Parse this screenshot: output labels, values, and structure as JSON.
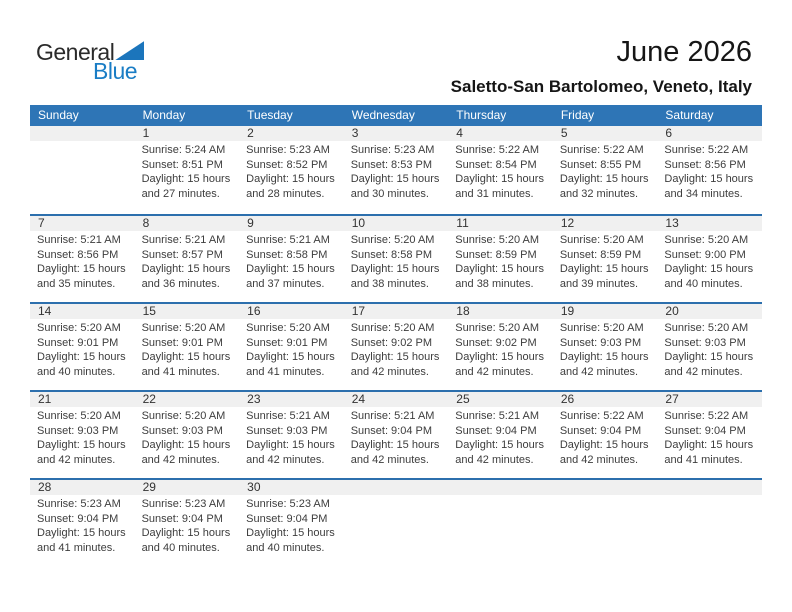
{
  "page": {
    "title": "June 2026",
    "subtitle": "Saletto-San Bartolomeo, Veneto, Italy"
  },
  "logo": {
    "line1": "General",
    "line2": "Blue",
    "triangle_icon": "blue-right-triangle"
  },
  "colors": {
    "header_bg": "#2e75b6",
    "header_text": "#ffffff",
    "day_band_bg": "#f0f0f0",
    "week_border": "#2c6fad",
    "logo_blue": "#1a7dc5",
    "body_text": "#3d3d3d"
  },
  "calendar": {
    "weekday_headers": [
      "Sunday",
      "Monday",
      "Tuesday",
      "Wednesday",
      "Thursday",
      "Friday",
      "Saturday"
    ],
    "weeks": [
      [
        null,
        {
          "day": "1",
          "lines": [
            "Sunrise: 5:24 AM",
            "Sunset: 8:51 PM",
            "Daylight: 15 hours",
            "and 27 minutes."
          ]
        },
        {
          "day": "2",
          "lines": [
            "Sunrise: 5:23 AM",
            "Sunset: 8:52 PM",
            "Daylight: 15 hours",
            "and 28 minutes."
          ]
        },
        {
          "day": "3",
          "lines": [
            "Sunrise: 5:23 AM",
            "Sunset: 8:53 PM",
            "Daylight: 15 hours",
            "and 30 minutes."
          ]
        },
        {
          "day": "4",
          "lines": [
            "Sunrise: 5:22 AM",
            "Sunset: 8:54 PM",
            "Daylight: 15 hours",
            "and 31 minutes."
          ]
        },
        {
          "day": "5",
          "lines": [
            "Sunrise: 5:22 AM",
            "Sunset: 8:55 PM",
            "Daylight: 15 hours",
            "and 32 minutes."
          ]
        },
        {
          "day": "6",
          "lines": [
            "Sunrise: 5:22 AM",
            "Sunset: 8:56 PM",
            "Daylight: 15 hours",
            "and 34 minutes."
          ]
        }
      ],
      [
        {
          "day": "7",
          "lines": [
            "Sunrise: 5:21 AM",
            "Sunset: 8:56 PM",
            "Daylight: 15 hours",
            "and 35 minutes."
          ]
        },
        {
          "day": "8",
          "lines": [
            "Sunrise: 5:21 AM",
            "Sunset: 8:57 PM",
            "Daylight: 15 hours",
            "and 36 minutes."
          ]
        },
        {
          "day": "9",
          "lines": [
            "Sunrise: 5:21 AM",
            "Sunset: 8:58 PM",
            "Daylight: 15 hours",
            "and 37 minutes."
          ]
        },
        {
          "day": "10",
          "lines": [
            "Sunrise: 5:20 AM",
            "Sunset: 8:58 PM",
            "Daylight: 15 hours",
            "and 38 minutes."
          ]
        },
        {
          "day": "11",
          "lines": [
            "Sunrise: 5:20 AM",
            "Sunset: 8:59 PM",
            "Daylight: 15 hours",
            "and 38 minutes."
          ]
        },
        {
          "day": "12",
          "lines": [
            "Sunrise: 5:20 AM",
            "Sunset: 8:59 PM",
            "Daylight: 15 hours",
            "and 39 minutes."
          ]
        },
        {
          "day": "13",
          "lines": [
            "Sunrise: 5:20 AM",
            "Sunset: 9:00 PM",
            "Daylight: 15 hours",
            "and 40 minutes."
          ]
        }
      ],
      [
        {
          "day": "14",
          "lines": [
            "Sunrise: 5:20 AM",
            "Sunset: 9:01 PM",
            "Daylight: 15 hours",
            "and 40 minutes."
          ]
        },
        {
          "day": "15",
          "lines": [
            "Sunrise: 5:20 AM",
            "Sunset: 9:01 PM",
            "Daylight: 15 hours",
            "and 41 minutes."
          ]
        },
        {
          "day": "16",
          "lines": [
            "Sunrise: 5:20 AM",
            "Sunset: 9:01 PM",
            "Daylight: 15 hours",
            "and 41 minutes."
          ]
        },
        {
          "day": "17",
          "lines": [
            "Sunrise: 5:20 AM",
            "Sunset: 9:02 PM",
            "Daylight: 15 hours",
            "and 42 minutes."
          ]
        },
        {
          "day": "18",
          "lines": [
            "Sunrise: 5:20 AM",
            "Sunset: 9:02 PM",
            "Daylight: 15 hours",
            "and 42 minutes."
          ]
        },
        {
          "day": "19",
          "lines": [
            "Sunrise: 5:20 AM",
            "Sunset: 9:03 PM",
            "Daylight: 15 hours",
            "and 42 minutes."
          ]
        },
        {
          "day": "20",
          "lines": [
            "Sunrise: 5:20 AM",
            "Sunset: 9:03 PM",
            "Daylight: 15 hours",
            "and 42 minutes."
          ]
        }
      ],
      [
        {
          "day": "21",
          "lines": [
            "Sunrise: 5:20 AM",
            "Sunset: 9:03 PM",
            "Daylight: 15 hours",
            "and 42 minutes."
          ]
        },
        {
          "day": "22",
          "lines": [
            "Sunrise: 5:20 AM",
            "Sunset: 9:03 PM",
            "Daylight: 15 hours",
            "and 42 minutes."
          ]
        },
        {
          "day": "23",
          "lines": [
            "Sunrise: 5:21 AM",
            "Sunset: 9:03 PM",
            "Daylight: 15 hours",
            "and 42 minutes."
          ]
        },
        {
          "day": "24",
          "lines": [
            "Sunrise: 5:21 AM",
            "Sunset: 9:04 PM",
            "Daylight: 15 hours",
            "and 42 minutes."
          ]
        },
        {
          "day": "25",
          "lines": [
            "Sunrise: 5:21 AM",
            "Sunset: 9:04 PM",
            "Daylight: 15 hours",
            "and 42 minutes."
          ]
        },
        {
          "day": "26",
          "lines": [
            "Sunrise: 5:22 AM",
            "Sunset: 9:04 PM",
            "Daylight: 15 hours",
            "and 42 minutes."
          ]
        },
        {
          "day": "27",
          "lines": [
            "Sunrise: 5:22 AM",
            "Sunset: 9:04 PM",
            "Daylight: 15 hours",
            "and 41 minutes."
          ]
        }
      ],
      [
        {
          "day": "28",
          "lines": [
            "Sunrise: 5:23 AM",
            "Sunset: 9:04 PM",
            "Daylight: 15 hours",
            "and 41 minutes."
          ]
        },
        {
          "day": "29",
          "lines": [
            "Sunrise: 5:23 AM",
            "Sunset: 9:04 PM",
            "Daylight: 15 hours",
            "and 40 minutes."
          ]
        },
        {
          "day": "30",
          "lines": [
            "Sunrise: 5:23 AM",
            "Sunset: 9:04 PM",
            "Daylight: 15 hours",
            "and 40 minutes."
          ]
        },
        null,
        null,
        null,
        null
      ]
    ]
  }
}
